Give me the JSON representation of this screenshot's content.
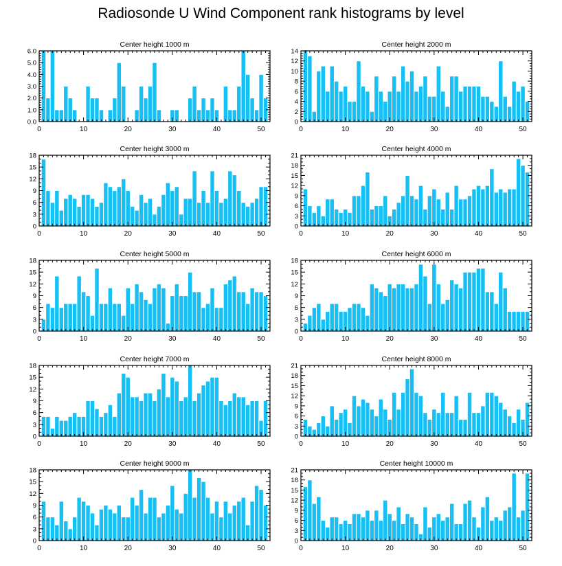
{
  "figure": {
    "title": "Radiosonde U Wind Component rank histograms by level",
    "bar_color": "#16c0f4",
    "bar_edge_color": "#ffffff",
    "axis_color": "#000000"
  },
  "chart_data": [
    {
      "type": "bar",
      "title": "Center height 1000 m",
      "xlim": [
        0,
        52
      ],
      "ylim": [
        0,
        6
      ],
      "xticks": [
        0,
        10,
        20,
        30,
        40,
        50
      ],
      "yticks": [
        0,
        1,
        2,
        3,
        4,
        5,
        6
      ],
      "ytick_labels": [
        "0.0",
        "1.0",
        "2.0",
        "3.0",
        "4.0",
        "5.0",
        "6.0"
      ],
      "x": [
        1,
        2,
        3,
        4,
        5,
        6,
        7,
        8,
        9,
        10,
        11,
        12,
        13,
        14,
        15,
        16,
        17,
        18,
        19,
        20,
        21,
        22,
        23,
        24,
        25,
        26,
        27,
        28,
        29,
        30,
        31,
        32,
        33,
        34,
        35,
        36,
        37,
        38,
        39,
        40,
        41,
        42,
        43,
        44,
        45,
        46,
        47,
        48,
        49,
        50,
        51
      ],
      "values": [
        6,
        2,
        6,
        1,
        1,
        3,
        2,
        1,
        0,
        0,
        3,
        2,
        2,
        1,
        0,
        1,
        2,
        5,
        3,
        0,
        0,
        1,
        3,
        2,
        3,
        5,
        1,
        0,
        0,
        1,
        1,
        0,
        0,
        2,
        3,
        1,
        2,
        1,
        2,
        1,
        0,
        3,
        1,
        1,
        3,
        6,
        4,
        2,
        1,
        4,
        2
      ]
    },
    {
      "type": "bar",
      "title": "Center height 2000 m",
      "xlim": [
        0,
        52
      ],
      "ylim": [
        0,
        14
      ],
      "xticks": [
        0,
        10,
        20,
        30,
        40,
        50
      ],
      "yticks": [
        0,
        2,
        4,
        6,
        8,
        10,
        12,
        14
      ],
      "ytick_labels": [
        "0",
        "2",
        "4",
        "6",
        "8",
        "10",
        "12",
        "14"
      ],
      "x": [
        1,
        2,
        3,
        4,
        5,
        6,
        7,
        8,
        9,
        10,
        11,
        12,
        13,
        14,
        15,
        16,
        17,
        18,
        19,
        20,
        21,
        22,
        23,
        24,
        25,
        26,
        27,
        28,
        29,
        30,
        31,
        32,
        33,
        34,
        35,
        36,
        37,
        38,
        39,
        40,
        41,
        42,
        43,
        44,
        45,
        46,
        47,
        48,
        49,
        50,
        51
      ],
      "values": [
        14,
        13,
        2,
        10,
        11,
        6,
        11,
        8,
        6,
        7,
        4,
        4,
        12,
        7,
        6,
        2,
        9,
        6,
        4,
        6,
        9,
        6,
        11,
        8,
        10,
        6,
        7,
        9,
        5,
        5,
        11,
        6,
        3,
        9,
        9,
        6,
        7,
        7,
        7,
        7,
        5,
        5,
        4,
        3,
        12,
        5,
        3,
        8,
        6,
        7,
        4
      ]
    },
    {
      "type": "bar",
      "title": "Center height 3000 m",
      "xlim": [
        0,
        52
      ],
      "ylim": [
        0,
        18
      ],
      "xticks": [
        0,
        10,
        20,
        30,
        40,
        50
      ],
      "yticks": [
        0,
        3,
        6,
        9,
        12,
        15,
        18
      ],
      "ytick_labels": [
        "0",
        "3",
        "6",
        "9",
        "12",
        "15",
        "18"
      ],
      "x": [
        1,
        2,
        3,
        4,
        5,
        6,
        7,
        8,
        9,
        10,
        11,
        12,
        13,
        14,
        15,
        16,
        17,
        18,
        19,
        20,
        21,
        22,
        23,
        24,
        25,
        26,
        27,
        28,
        29,
        30,
        31,
        32,
        33,
        34,
        35,
        36,
        37,
        38,
        39,
        40,
        41,
        42,
        43,
        44,
        45,
        46,
        47,
        48,
        49,
        50,
        51
      ],
      "values": [
        17,
        9,
        6,
        9,
        4,
        7,
        8,
        7,
        5,
        8,
        8,
        7,
        5,
        6,
        11,
        10,
        9,
        10,
        12,
        9,
        5,
        4,
        8,
        6,
        7,
        3,
        5,
        8,
        11,
        9,
        10,
        3,
        7,
        7,
        14,
        6,
        9,
        6,
        14,
        9,
        6,
        7,
        14,
        13,
        9,
        6,
        5,
        6,
        7,
        10,
        10
      ]
    },
    {
      "type": "bar",
      "title": "Center height 4000 m",
      "xlim": [
        0,
        52
      ],
      "ylim": [
        0,
        21
      ],
      "xticks": [
        0,
        10,
        20,
        30,
        40,
        50
      ],
      "yticks": [
        0,
        3,
        6,
        9,
        12,
        15,
        18,
        21
      ],
      "ytick_labels": [
        "0",
        "3",
        "6",
        "9",
        "12",
        "15",
        "18",
        "21"
      ],
      "x": [
        1,
        2,
        3,
        4,
        5,
        6,
        7,
        8,
        9,
        10,
        11,
        12,
        13,
        14,
        15,
        16,
        17,
        18,
        19,
        20,
        21,
        22,
        23,
        24,
        25,
        26,
        27,
        28,
        29,
        30,
        31,
        32,
        33,
        34,
        35,
        36,
        37,
        38,
        39,
        40,
        41,
        42,
        43,
        44,
        45,
        46,
        47,
        48,
        49,
        50,
        51
      ],
      "values": [
        11,
        6,
        4,
        6,
        3,
        8,
        8,
        5,
        4,
        5,
        4,
        9,
        9,
        12,
        16,
        5,
        6,
        6,
        9,
        3,
        5,
        7,
        9,
        15,
        9,
        8,
        12,
        5,
        9,
        11,
        8,
        5,
        10,
        5,
        12,
        8,
        8,
        9,
        11,
        12,
        11,
        12,
        17,
        10,
        11,
        10,
        11,
        11,
        20,
        18,
        16
      ]
    },
    {
      "type": "bar",
      "title": "Center height 5000 m",
      "xlim": [
        0,
        52
      ],
      "ylim": [
        0,
        18
      ],
      "xticks": [
        0,
        10,
        20,
        30,
        40,
        50
      ],
      "yticks": [
        0,
        3,
        6,
        9,
        12,
        15,
        18
      ],
      "ytick_labels": [
        "0",
        "3",
        "6",
        "9",
        "12",
        "15",
        "18"
      ],
      "x": [
        1,
        2,
        3,
        4,
        5,
        6,
        7,
        8,
        9,
        10,
        11,
        12,
        13,
        14,
        15,
        16,
        17,
        18,
        19,
        20,
        21,
        22,
        23,
        24,
        25,
        26,
        27,
        28,
        29,
        30,
        31,
        32,
        33,
        34,
        35,
        36,
        37,
        38,
        39,
        40,
        41,
        42,
        43,
        44,
        45,
        46,
        47,
        48,
        49,
        50,
        51
      ],
      "values": [
        3,
        7,
        6,
        14,
        6,
        7,
        7,
        7,
        14,
        10,
        9,
        4,
        16,
        7,
        7,
        11,
        7,
        7,
        4,
        11,
        7,
        12,
        10,
        8,
        7,
        11,
        12,
        11,
        2,
        9,
        12,
        9,
        9,
        15,
        10,
        10,
        6,
        7,
        11,
        6,
        6,
        12,
        13,
        14,
        10,
        10,
        7,
        11,
        10,
        10,
        9
      ]
    },
    {
      "type": "bar",
      "title": "Center height 6000 m",
      "xlim": [
        0,
        52
      ],
      "ylim": [
        0,
        18
      ],
      "xticks": [
        0,
        10,
        20,
        30,
        40,
        50
      ],
      "yticks": [
        0,
        3,
        6,
        9,
        12,
        15,
        18
      ],
      "ytick_labels": [
        "0",
        "3",
        "6",
        "9",
        "12",
        "15",
        "18"
      ],
      "x": [
        1,
        2,
        3,
        4,
        5,
        6,
        7,
        8,
        9,
        10,
        11,
        12,
        13,
        14,
        15,
        16,
        17,
        18,
        19,
        20,
        21,
        22,
        23,
        24,
        25,
        26,
        27,
        28,
        29,
        30,
        31,
        32,
        33,
        34,
        35,
        36,
        37,
        38,
        39,
        40,
        41,
        42,
        43,
        44,
        45,
        46,
        47,
        48,
        49,
        50,
        51
      ],
      "values": [
        2,
        4,
        6,
        7,
        3,
        5,
        7,
        7,
        5,
        5,
        6,
        7,
        7,
        6,
        4,
        12,
        11,
        10,
        9,
        12,
        11,
        12,
        12,
        11,
        11,
        12,
        17,
        14,
        7,
        17,
        12,
        7,
        8,
        13,
        12,
        11,
        15,
        15,
        15,
        16,
        16,
        10,
        10,
        7,
        15,
        11,
        5,
        5,
        5,
        5,
        5
      ]
    },
    {
      "type": "bar",
      "title": "Center height 7000 m",
      "xlim": [
        0,
        52
      ],
      "ylim": [
        0,
        18
      ],
      "xticks": [
        0,
        10,
        20,
        30,
        40,
        50
      ],
      "yticks": [
        0,
        3,
        6,
        9,
        12,
        15,
        18
      ],
      "ytick_labels": [
        "0",
        "3",
        "6",
        "9",
        "12",
        "15",
        "18"
      ],
      "x": [
        1,
        2,
        3,
        4,
        5,
        6,
        7,
        8,
        9,
        10,
        11,
        12,
        13,
        14,
        15,
        16,
        17,
        18,
        19,
        20,
        21,
        22,
        23,
        24,
        25,
        26,
        27,
        28,
        29,
        30,
        31,
        32,
        33,
        34,
        35,
        36,
        37,
        38,
        39,
        40,
        41,
        42,
        43,
        44,
        45,
        46,
        47,
        48,
        49,
        50,
        51
      ],
      "values": [
        5,
        5,
        2,
        5,
        4,
        4,
        5,
        6,
        5,
        5,
        9,
        9,
        7,
        5,
        6,
        8,
        5,
        11,
        16,
        15,
        10,
        10,
        9,
        11,
        11,
        9,
        12,
        16,
        10,
        15,
        14,
        9,
        10,
        18,
        9,
        11,
        13,
        14,
        15,
        15,
        9,
        8,
        9,
        11,
        10,
        10,
        8,
        9,
        9,
        4,
        9
      ]
    },
    {
      "type": "bar",
      "title": "Center height 8000 m",
      "xlim": [
        0,
        52
      ],
      "ylim": [
        0,
        21
      ],
      "xticks": [
        0,
        10,
        20,
        30,
        40,
        50
      ],
      "yticks": [
        0,
        3,
        6,
        9,
        12,
        15,
        18,
        21
      ],
      "ytick_labels": [
        "0",
        "3",
        "6",
        "9",
        "12",
        "15",
        "18",
        "21"
      ],
      "x": [
        1,
        2,
        3,
        4,
        5,
        6,
        7,
        8,
        9,
        10,
        11,
        12,
        13,
        14,
        15,
        16,
        17,
        18,
        19,
        20,
        21,
        22,
        23,
        24,
        25,
        26,
        27,
        28,
        29,
        30,
        31,
        32,
        33,
        34,
        35,
        36,
        37,
        38,
        39,
        40,
        41,
        42,
        43,
        44,
        45,
        46,
        47,
        48,
        49,
        50,
        51
      ],
      "values": [
        5,
        3,
        2,
        4,
        6,
        3,
        9,
        5,
        7,
        8,
        4,
        12,
        9,
        11,
        10,
        8,
        6,
        11,
        8,
        5,
        13,
        8,
        13,
        17,
        20,
        13,
        12,
        7,
        5,
        8,
        7,
        13,
        7,
        7,
        12,
        5,
        5,
        13,
        7,
        7,
        9,
        13,
        13,
        12,
        10,
        8,
        6,
        4,
        8,
        5,
        10
      ]
    },
    {
      "type": "bar",
      "title": "Center height 9000 m",
      "xlim": [
        0,
        52
      ],
      "ylim": [
        0,
        18
      ],
      "xticks": [
        0,
        10,
        20,
        30,
        40,
        50
      ],
      "yticks": [
        0,
        3,
        6,
        9,
        12,
        15,
        18
      ],
      "ytick_labels": [
        "0",
        "3",
        "6",
        "9",
        "12",
        "15",
        "18"
      ],
      "x": [
        1,
        2,
        3,
        4,
        5,
        6,
        7,
        8,
        9,
        10,
        11,
        12,
        13,
        14,
        15,
        16,
        17,
        18,
        19,
        20,
        21,
        22,
        23,
        24,
        25,
        26,
        27,
        28,
        29,
        30,
        31,
        32,
        33,
        34,
        35,
        36,
        37,
        38,
        39,
        40,
        41,
        42,
        43,
        44,
        45,
        46,
        47,
        48,
        49,
        50,
        51
      ],
      "values": [
        10,
        6,
        6,
        4,
        10,
        5,
        3,
        6,
        11,
        10,
        9,
        7,
        4,
        8,
        9,
        8,
        7,
        9,
        6,
        6,
        11,
        9,
        13,
        7,
        11,
        11,
        6,
        7,
        9,
        14,
        8,
        7,
        12,
        18,
        11,
        16,
        15,
        11,
        7,
        10,
        6,
        10,
        7,
        9,
        10,
        11,
        4,
        10,
        14,
        13,
        9
      ]
    },
    {
      "type": "bar",
      "title": "Center height 10000 m",
      "xlim": [
        0,
        52
      ],
      "ylim": [
        0,
        21
      ],
      "xticks": [
        0,
        10,
        20,
        30,
        40,
        50
      ],
      "yticks": [
        0,
        3,
        6,
        9,
        12,
        15,
        18,
        21
      ],
      "ytick_labels": [
        "0",
        "3",
        "6",
        "9",
        "12",
        "15",
        "18",
        "21"
      ],
      "x": [
        1,
        2,
        3,
        4,
        5,
        6,
        7,
        8,
        9,
        10,
        11,
        12,
        13,
        14,
        15,
        16,
        17,
        18,
        19,
        20,
        21,
        22,
        23,
        24,
        25,
        26,
        27,
        28,
        29,
        30,
        31,
        32,
        33,
        34,
        35,
        36,
        37,
        38,
        39,
        40,
        41,
        42,
        43,
        44,
        45,
        46,
        47,
        48,
        49,
        50,
        51
      ],
      "values": [
        16,
        18,
        11,
        13,
        6,
        4,
        7,
        7,
        5,
        6,
        5,
        8,
        8,
        7,
        9,
        6,
        9,
        6,
        12,
        8,
        6,
        10,
        5,
        8,
        7,
        5,
        2,
        10,
        4,
        7,
        8,
        6,
        7,
        11,
        5,
        5,
        11,
        12,
        7,
        4,
        10,
        13,
        6,
        7,
        6,
        9,
        10,
        20,
        7,
        9,
        20
      ]
    }
  ]
}
